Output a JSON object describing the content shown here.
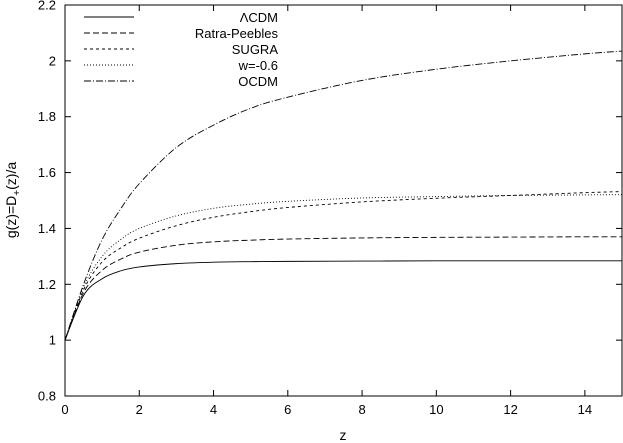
{
  "chart_data": {
    "type": "line",
    "xlabel": "z",
    "ylabel": "g(z)=D",
    "ylabel_sub": "+",
    "ylabel_tail": "(z)/a",
    "xlim": [
      0,
      15
    ],
    "ylim": [
      0.8,
      2.2
    ],
    "xticks": [
      0,
      2,
      4,
      6,
      8,
      10,
      12,
      14
    ],
    "yticks": [
      0.8,
      1,
      1.2,
      1.4,
      1.6,
      1.8,
      2,
      2.2
    ],
    "xtick_labels": [
      "0",
      "2",
      "4",
      "6",
      "8",
      "10",
      "12",
      "14"
    ],
    "ytick_labels": [
      "0.8",
      "1",
      "1.2",
      "1.4",
      "1.6",
      "1.8",
      "2",
      "2.2"
    ],
    "grid": false,
    "legend_position": "top-left",
    "series": [
      {
        "name": "ΛCDM",
        "dash": "",
        "x": [
          0,
          0.5,
          1,
          1.5,
          2,
          3,
          4,
          5,
          6,
          8,
          10,
          12,
          14,
          15
        ],
        "y": [
          1.0,
          1.16,
          1.22,
          1.248,
          1.262,
          1.274,
          1.279,
          1.281,
          1.282,
          1.283,
          1.284,
          1.284,
          1.284,
          1.284
        ]
      },
      {
        "name": "Ratra-Peebles",
        "dash": "6,3",
        "x": [
          0,
          0.5,
          1,
          1.5,
          2,
          3,
          4,
          5,
          6,
          8,
          10,
          12,
          14,
          15
        ],
        "y": [
          1.0,
          1.17,
          1.25,
          1.29,
          1.315,
          1.34,
          1.352,
          1.358,
          1.362,
          1.366,
          1.368,
          1.369,
          1.37,
          1.37
        ]
      },
      {
        "name": "SUGRA",
        "dash": "3,3",
        "x": [
          0,
          0.5,
          1,
          1.5,
          2,
          3,
          4,
          5,
          6,
          8,
          10,
          12,
          14,
          15
        ],
        "y": [
          1.0,
          1.18,
          1.28,
          1.33,
          1.365,
          1.41,
          1.44,
          1.46,
          1.475,
          1.495,
          1.508,
          1.518,
          1.528,
          1.532
        ]
      },
      {
        "name": "w=-0.6",
        "dash": "1,2",
        "x": [
          0,
          0.5,
          1,
          1.5,
          2,
          3,
          4,
          5,
          6,
          8,
          10,
          12,
          14,
          15
        ],
        "y": [
          1.0,
          1.19,
          1.3,
          1.36,
          1.4,
          1.445,
          1.472,
          1.487,
          1.497,
          1.509,
          1.514,
          1.518,
          1.52,
          1.521
        ]
      },
      {
        "name": "OCDM",
        "dash": "7,2,1,2",
        "x": [
          0,
          0.5,
          1,
          1.5,
          2,
          3,
          4,
          5,
          6,
          8,
          10,
          12,
          14,
          15
        ],
        "y": [
          1.0,
          1.2,
          1.36,
          1.47,
          1.56,
          1.69,
          1.77,
          1.83,
          1.87,
          1.93,
          1.97,
          2.0,
          2.025,
          2.035
        ]
      }
    ]
  }
}
